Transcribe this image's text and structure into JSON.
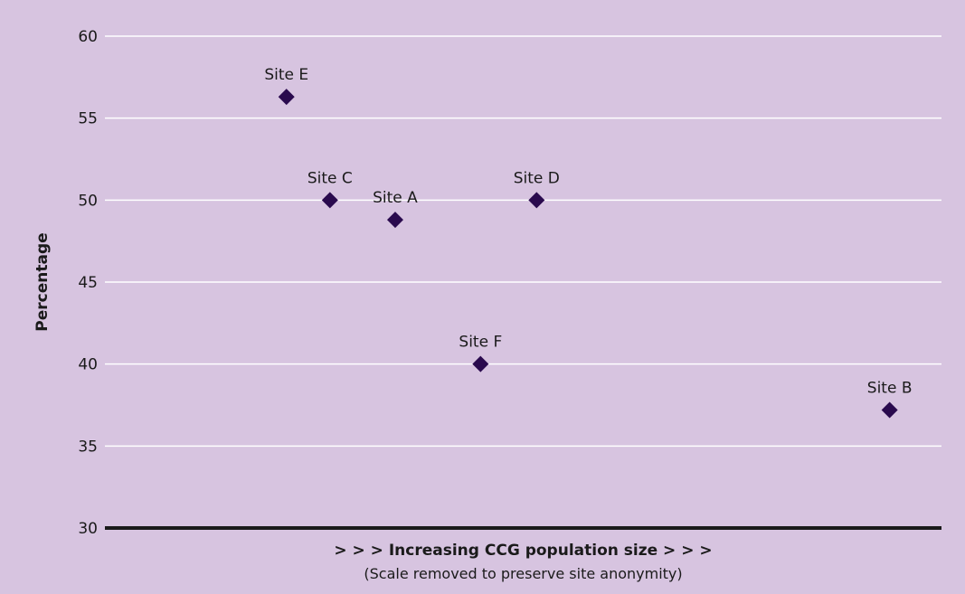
{
  "colors": {
    "background": "#d7c4e0",
    "gridline": "#ffffff",
    "baseline": "#1a1a1a",
    "marker": "#2a0a4e"
  },
  "chart_data": {
    "type": "scatter",
    "title": "",
    "ylabel": "Percentage",
    "xlabel": "> > > Increasing CCG population size > > >",
    "xlabel_note": "(Scale removed to preserve site anonymity)",
    "ylim": [
      30,
      60
    ],
    "yticks": [
      30,
      35,
      40,
      45,
      50,
      55,
      60
    ],
    "xlim": [
      0,
      100
    ],
    "grid": true,
    "legend": "none",
    "points": [
      {
        "label": "Site E",
        "x": 21.7,
        "y": 56.3
      },
      {
        "label": "Site C",
        "x": 26.9,
        "y": 50.0
      },
      {
        "label": "Site A",
        "x": 34.7,
        "y": 48.8
      },
      {
        "label": "Site D",
        "x": 51.6,
        "y": 50.0
      },
      {
        "label": "Site F",
        "x": 44.9,
        "y": 40.0
      },
      {
        "label": "Site B",
        "x": 93.8,
        "y": 37.2
      }
    ]
  }
}
